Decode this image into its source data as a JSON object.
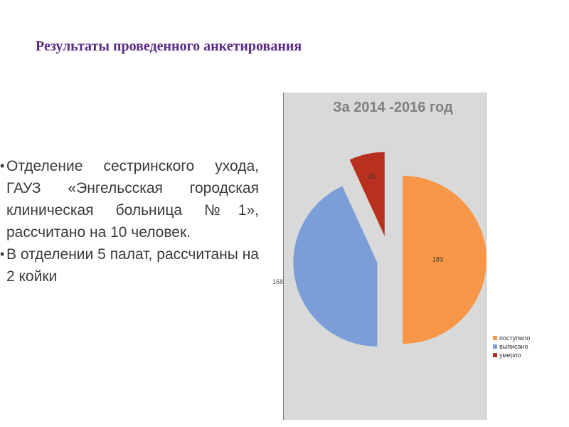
{
  "slide": {
    "title": "Результаты проведенного анкетирования",
    "bullets": [
      "Отделение сестринского ухода, ГАУЗ «Энгельсская городская клиническая больница №1», рассчитано на 10 человек.",
      "В отделении 5 палат, рассчитаны на 2 койки"
    ]
  },
  "chart_data": {
    "type": "pie",
    "title": "За 2014 -2016 год",
    "categories": [
      "поступило",
      "выписано",
      "умерло"
    ],
    "values": [
      183,
      158,
      25
    ],
    "colors": [
      "#f79646",
      "#7b9ed8",
      "#b8311f"
    ],
    "data_labels": [
      "183",
      "158",
      "25"
    ],
    "legend_position": "right",
    "exploded": true
  }
}
